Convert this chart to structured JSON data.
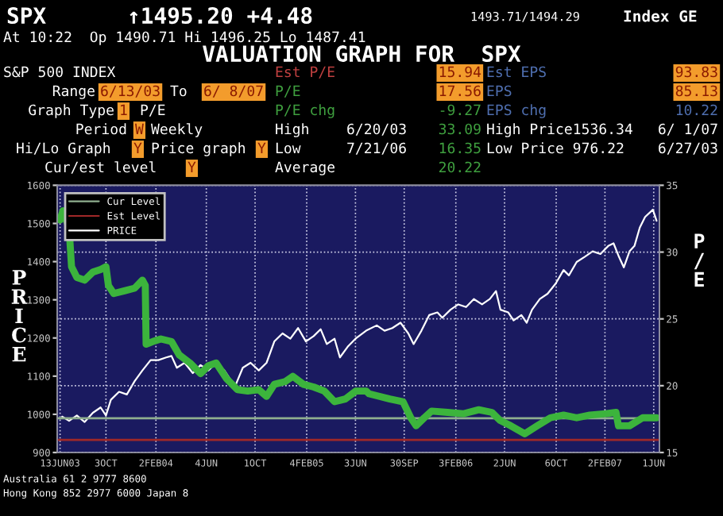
{
  "chart_data": {
    "type": "line",
    "title": "VALUATION GRAPH FOR  SPX",
    "ylabel": "PRICE",
    "y2label": "P/E",
    "annotations": [
      "SPX",
      "↑1495.20 +4.48",
      "1493.71/1494.29",
      "Index GE",
      "At 10:22  Op 1490.71 Hi 1496.25 Lo 1487.41",
      "S&P 500 INDEX",
      "Range",
      "6/13/03",
      "To",
      "6/ 8/07",
      "Graph Type",
      "1",
      "P/E",
      "Period",
      "W",
      "Weekly",
      "Hi/Lo Graph",
      "Y",
      "Price graph",
      "Y",
      "Cur/est level",
      "Y",
      "Est P/E",
      "15.94",
      "P/E",
      "17.56",
      "P/E chg",
      "-9.27",
      "High",
      "6/20/03",
      "33.09",
      "Low",
      "7/21/06",
      "16.35",
      "Average",
      "20.22",
      "Est EPS",
      "93.83",
      "EPS",
      "85.13",
      "EPS chg",
      "10.22",
      "High Price1536.34",
      "6/ 1/07",
      "Low Price 976.22",
      "6/27/03",
      "Australia 61 2 9777 8600",
      "Hong Kong 852 2977 6000 Japan 8"
    ],
    "series": [
      {
        "name": "PRICE",
        "color": "#ffffff",
        "x": [
          "2003-06-18",
          "2003-07-05",
          "2003-07-24",
          "2003-08-12",
          "2003-09-01",
          "2003-09-20",
          "2003-10-03",
          "2003-10-15",
          "2003-11-04",
          "2003-11-23",
          "2003-12-12",
          "2003-12-31",
          "2004-01-20",
          "2004-02-08",
          "2004-02-27",
          "2004-03-11",
          "2004-03-24",
          "2004-04-12",
          "2004-05-02",
          "2004-05-21",
          "2004-06-09",
          "2004-06-28",
          "2004-07-18",
          "2004-08-13",
          "2004-09-01",
          "2004-09-20",
          "2004-10-10",
          "2004-10-29",
          "2004-11-17",
          "2004-12-07",
          "2004-12-26",
          "2005-01-14",
          "2005-02-02",
          "2005-02-21",
          "2005-03-10",
          "2005-03-25",
          "2005-04-13",
          "2005-04-26",
          "2005-05-15",
          "2005-06-03",
          "2005-06-29",
          "2005-07-25",
          "2005-08-13",
          "2005-09-01",
          "2005-09-21",
          "2005-10-10",
          "2005-10-23",
          "2005-11-11",
          "2005-11-30",
          "2005-12-20",
          "2006-01-01",
          "2006-01-21",
          "2006-02-09",
          "2006-02-28",
          "2006-03-19",
          "2006-04-08",
          "2006-04-27",
          "2006-05-12",
          "2006-05-23",
          "2006-06-11",
          "2006-06-24",
          "2006-07-13",
          "2006-07-26",
          "2006-08-08",
          "2006-08-27",
          "2006-09-15",
          "2006-10-05",
          "2006-10-24",
          "2006-11-06",
          "2006-11-25",
          "2006-12-15",
          "2007-01-03",
          "2007-01-22",
          "2007-02-10",
          "2007-02-23",
          "2007-03-08",
          "2007-03-20",
          "2007-04-03",
          "2007-04-15",
          "2007-04-28",
          "2007-05-11",
          "2007-05-30",
          "2007-06-08"
        ],
        "values": [
          994,
          983,
          997,
          980,
          1004,
          1018,
          997,
          1038,
          1059,
          1052,
          1087,
          1115,
          1142,
          1142,
          1149,
          1153,
          1122,
          1135,
          1108,
          1129,
          1115,
          1135,
          1115,
          1073,
          1122,
          1135,
          1115,
          1135,
          1191,
          1212,
          1198,
          1226,
          1191,
          1205,
          1223,
          1184,
          1198,
          1149,
          1177,
          1198,
          1219,
          1233,
          1219,
          1226,
          1240,
          1212,
          1184,
          1219,
          1260,
          1267,
          1253,
          1274,
          1288,
          1281,
          1302,
          1288,
          1302,
          1323,
          1274,
          1267,
          1246,
          1260,
          1240,
          1274,
          1302,
          1316,
          1343,
          1378,
          1364,
          1399,
          1413,
          1427,
          1420,
          1441,
          1448,
          1413,
          1385,
          1427,
          1441,
          1489,
          1517,
          1536,
          1507
        ]
      },
      {
        "axis": "y2",
        "color": "#3cb43c",
        "x": [
          "2003-06-13",
          "2003-06-20",
          "2003-07-05",
          "2003-07-11",
          "2003-07-24",
          "2003-08-12",
          "2003-09-01",
          "2003-09-20",
          "2003-10-03",
          "2003-10-09",
          "2003-10-22",
          "2003-11-17",
          "2003-12-12",
          "2003-12-31",
          "2004-01-07",
          "2004-01-09",
          "2004-01-25",
          "2004-02-14",
          "2004-03-11",
          "2004-03-30",
          "2004-04-25",
          "2004-05-21",
          "2004-06-09",
          "2004-06-28",
          "2004-07-24",
          "2004-08-19",
          "2004-09-13",
          "2004-10-10",
          "2004-10-29",
          "2004-11-17",
          "2004-12-13",
          "2005-01-01",
          "2005-01-27",
          "2005-02-21",
          "2005-03-19",
          "2005-04-13",
          "2005-05-09",
          "2005-06-04",
          "2005-06-29",
          "2005-07-06",
          "2005-07-31",
          "2005-08-26",
          "2005-09-27",
          "2005-10-16",
          "2005-10-29",
          "2005-11-18",
          "2005-12-06",
          "2006-01-14",
          "2006-02-21",
          "2006-03-31",
          "2006-05-02",
          "2006-05-22",
          "2006-06-17",
          "2006-07-21",
          "2006-08-21",
          "2006-09-22",
          "2006-10-24",
          "2006-11-25",
          "2006-12-27",
          "2007-02-04",
          "2007-03-01",
          "2007-03-07",
          "2007-04-03",
          "2007-05-05",
          "2007-06-08"
        ],
        "values": [
          32.4,
          33.1,
          31.8,
          28.9,
          28.1,
          27.9,
          28.5,
          28.7,
          28.9,
          27.5,
          26.9,
          27.1,
          27.3,
          27.9,
          27.5,
          23.1,
          23.3,
          23.5,
          23.3,
          22.3,
          21.7,
          20.9,
          21.5,
          21.7,
          20.5,
          19.7,
          19.6,
          19.7,
          19.2,
          20.1,
          20.3,
          20.7,
          20.1,
          19.9,
          19.6,
          18.8,
          19.0,
          19.6,
          19.6,
          19.4,
          19.2,
          19.0,
          18.8,
          17.6,
          17.0,
          17.6,
          18.1,
          18.0,
          17.9,
          18.2,
          18.0,
          17.4,
          17.0,
          16.4,
          17.0,
          17.6,
          17.8,
          17.6,
          17.8,
          17.9,
          18.0,
          17.0,
          17.0,
          17.6,
          17.6
        ]
      }
    ],
    "ref_lines": [
      {
        "axis": "y2",
        "value": 17.56,
        "label": "Cur Level",
        "color": "#8fae8f"
      },
      {
        "axis": "y2",
        "value": 15.94,
        "label": "Est Level",
        "color": "#a02828"
      }
    ],
    "xlim": [
      "2003-06-06",
      "2007-06-15"
    ],
    "xticks": [
      {
        "value": "2003-06-13",
        "label": "13JUN03"
      },
      {
        "value": "2003-10-03",
        "label": "3OCT"
      },
      {
        "value": "2004-02-02",
        "label": "2FEB04"
      },
      {
        "value": "2004-06-04",
        "label": "4JUN"
      },
      {
        "value": "2004-10-01",
        "label": "1OCT"
      },
      {
        "value": "2005-02-04",
        "label": "4FEB05"
      },
      {
        "value": "2005-06-03",
        "label": "3JUN"
      },
      {
        "value": "2005-09-30",
        "label": "30SEP"
      },
      {
        "value": "2006-02-03",
        "label": "3FEB06"
      },
      {
        "value": "2006-06-02",
        "label": "2JUN"
      },
      {
        "value": "2006-10-06",
        "label": "6OCT"
      },
      {
        "value": "2007-02-02",
        "label": "2FEB07"
      },
      {
        "value": "2007-06-01",
        "label": "1JUN"
      }
    ],
    "ylim": [
      900,
      1600
    ],
    "yticks": [
      900,
      1000,
      1100,
      1200,
      1300,
      1400,
      1500,
      1600
    ],
    "y2lim": [
      15,
      35
    ],
    "y2ticks": [
      15,
      20,
      25,
      30,
      35
    ],
    "grid": true,
    "legend": "top left"
  }
}
